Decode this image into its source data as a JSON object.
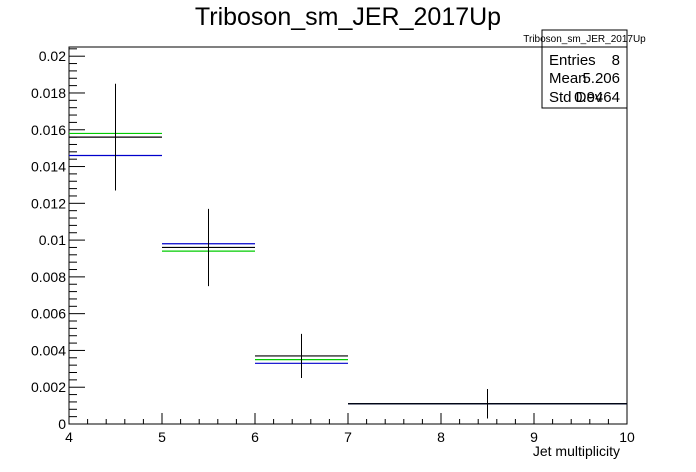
{
  "chart_data": {
    "type": "histogram",
    "title": "Triboson_sm_JER_2017Up",
    "xlabel": "Jet multiplicity",
    "ylabel": "",
    "xlim": [
      4,
      10
    ],
    "ylim": [
      0,
      0.0205
    ],
    "x_ticks": [
      4,
      5,
      6,
      7,
      8,
      9,
      10
    ],
    "y_ticks": [
      0,
      0.002,
      0.004,
      0.006,
      0.008,
      0.01,
      0.012,
      0.014,
      0.016,
      0.018,
      0.02
    ],
    "y_tick_labels": [
      "0",
      "0.002",
      "0.004",
      "0.006",
      "0.008",
      "0.01",
      "0.012",
      "0.014",
      "0.016",
      "0.018",
      "0.02"
    ],
    "bins": [
      [
        4,
        5
      ],
      [
        5,
        6
      ],
      [
        6,
        7
      ],
      [
        7,
        10
      ]
    ],
    "series": [
      {
        "color": "#000000",
        "values": [
          0.0156,
          0.0096,
          0.0037,
          0.0011
        ],
        "errors": [
          0.0029,
          0.0021,
          0.0012,
          0.0008
        ],
        "error_bars": true
      },
      {
        "color": "#00cc00",
        "values": [
          0.0158,
          0.0094,
          0.0035,
          0.0011
        ],
        "error_bars": false
      },
      {
        "color": "#0000cc",
        "values": [
          0.0146,
          0.0098,
          0.0033,
          0.0011
        ],
        "error_bars": false
      }
    ],
    "stats_box": {
      "title": "Triboson_sm_JER_2017Up",
      "rows": [
        {
          "label": "Entries",
          "value": "8"
        },
        {
          "label": "Mean",
          "value": "5.206"
        },
        {
          "label": "Std Dev",
          "value": "0.9464"
        }
      ]
    },
    "grid": false,
    "legend": "none"
  }
}
